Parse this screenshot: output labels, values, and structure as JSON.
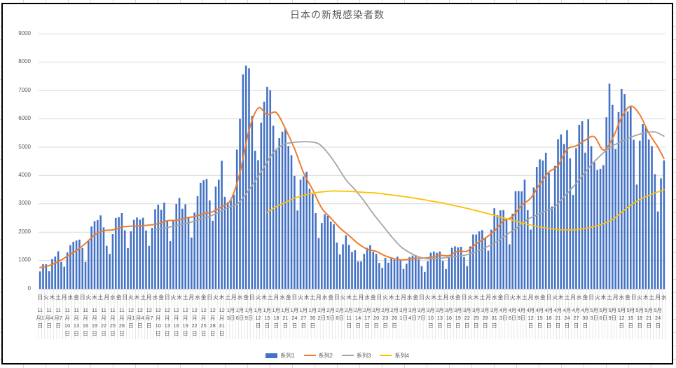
{
  "chart_data": {
    "type": "bar+line combo",
    "title": "日本の新規感染者数",
    "x_start_date": "11月1日",
    "x_end_date": "5月26日",
    "n_days": 207,
    "ylim": [
      0,
      9000
    ],
    "y_ticks": [
      0,
      1000,
      2000,
      3000,
      4000,
      5000,
      6000,
      7000,
      8000,
      9000
    ],
    "grid_color": "#D9D9D9",
    "axis_text_color": "#595959",
    "x_axis": {
      "weekday_cycle": "日火木土月水金",
      "weekday_step_days": 2,
      "date_step_days": 3,
      "date_labels": [
        "11月1日",
        "11月4日",
        "11月7日",
        "11月10日",
        "11月13日",
        "11月16日",
        "11月19日",
        "11月22日",
        "11月25日",
        "11月28日",
        "12月1日",
        "12月4日",
        "12月7日",
        "12月10日",
        "12月13日",
        "12月16日",
        "12月19日",
        "12月22日",
        "12月25日",
        "12月28日",
        "12月31日",
        "1月3日",
        "1月6日",
        "1月9日",
        "1月12日",
        "1月15日",
        "1月18日",
        "1月21日",
        "1月24日",
        "1月27日",
        "1月30日",
        "2月2日",
        "2月5日",
        "2月8日",
        "2月11日",
        "2月14日",
        "2月17日",
        "2月20日",
        "2月23日",
        "2月26日",
        "3月1日",
        "3月4日",
        "3月7日",
        "3月10日",
        "3月13日",
        "3月16日",
        "3月19日",
        "3月22日",
        "3月25日",
        "3月28日",
        "3月31日",
        "4月3日",
        "4月6日",
        "4月9日",
        "4月12日",
        "4月15日",
        "4月18日",
        "4月21日",
        "4月24日",
        "4月27日",
        "4月30日",
        "5月3日",
        "5月6日",
        "5月9日",
        "5月12日",
        "5月15日",
        "5月18日",
        "5月21日",
        "5月24日"
      ]
    },
    "series": [
      {
        "name": "系列1",
        "type": "bar",
        "color": "#4472C4",
        "start_day": 0,
        "step": 1,
        "values": [
          614,
          871,
          867,
          620,
          1050,
          1141,
          1324,
          947,
          781,
          1284,
          1543,
          1661,
          1704,
          1737,
          1440,
          950,
          1699,
          2201,
          2388,
          2427,
          2592,
          2168,
          1520,
          1230,
          1930,
          2501,
          2529,
          2674,
          2063,
          1440,
          2030,
          2434,
          2518,
          2442,
          2508,
          2058,
          1516,
          2152,
          2811,
          2971,
          2788,
          3041,
          2388,
          1680,
          2410,
          2994,
          3211,
          2829,
          2983,
          2501,
          1809,
          2690,
          3271,
          3742,
          3832,
          3881,
          3119,
          2403,
          3610,
          3852,
          4520,
          3246,
          3059,
          3127,
          3325,
          4915,
          6001,
          7569,
          7882,
          7790,
          6106,
          4876,
          4541,
          5870,
          6607,
          7133,
          7014,
          5759,
          4925,
          5320,
          5549,
          5653,
          5045,
          4717,
          3988,
          2764,
          3853,
          3971,
          4133,
          3534,
          3344,
          2673,
          1792,
          2324,
          2631,
          2576,
          2372,
          2279,
          1631,
          1216,
          1570,
          1887,
          1551,
          1304,
          1362,
          965,
          966,
          1236,
          1448,
          1538,
          1301,
          1234,
          912,
          741,
          1087,
          922,
          1076,
          1029,
          1136,
          999,
          698,
          888,
          1121,
          1173,
          1148,
          1034,
          800,
          599,
          974,
          1277,
          1316,
          1271,
          1320,
          988,
          695,
          1127,
          1449,
          1500,
          1463,
          1485,
          1119,
          800,
          1500,
          1918,
          1917,
          2027,
          2072,
          1785,
          1348,
          2087,
          2843,
          2597,
          2770,
          2779,
          2472,
          1571,
          2653,
          3448,
          3450,
          3442,
          3854,
          2777,
          2091,
          3579,
          4306,
          4570,
          4530,
          4805,
          4091,
          2908,
          4342,
          5283,
          5452,
          5113,
          5605,
          4605,
          3318,
          4963,
          5792,
          5918,
          4808,
          5986,
          5038,
          4470,
          4199,
          4236,
          4367,
          6058,
          7245,
          6493,
          4938,
          6243,
          7057,
          6879,
          6263,
          6421,
          5261,
          3680,
          5232,
          5816,
          5721,
          5272,
          5040,
          4048,
          2731,
          3901,
          4536
        ]
      },
      {
        "name": "系列2",
        "type": "line",
        "color": "#ED7D31",
        "start_day": 0,
        "step": 3,
        "values": [
          750,
          820,
          960,
          1150,
          1350,
          1600,
          1900,
          2050,
          2080,
          2180,
          2210,
          2220,
          2250,
          2300,
          2400,
          2420,
          2500,
          2550,
          2650,
          2720,
          2900,
          3150,
          4100,
          5600,
          6380,
          6150,
          6220,
          5650,
          4950,
          4100,
          3500,
          2850,
          2500,
          2150,
          1880,
          1600,
          1400,
          1320,
          1160,
          1060,
          1020,
          1070,
          1080,
          1110,
          1180,
          1170,
          1330,
          1330,
          1590,
          1790,
          2040,
          2390,
          2550,
          2950,
          3200,
          3700,
          4120,
          4350,
          4920,
          5050,
          5250,
          5370,
          4900,
          5300,
          6050,
          6450,
          6150,
          5500,
          5000
        ],
        "end_day": 206,
        "end_value": 4600
      },
      {
        "name": "系列3",
        "type": "line",
        "color": "#A5A5A5",
        "start_day": 38,
        "step": 3,
        "values": [
          2090,
          2140,
          2210,
          2280,
          2360,
          2460,
          2560,
          2700,
          2870,
          2980,
          3350,
          3800,
          4300,
          4800,
          5080,
          5160,
          5190,
          5190,
          5120,
          4800,
          4350,
          3850,
          3500,
          3100,
          2650,
          2250,
          1850,
          1500,
          1280,
          1130,
          1060,
          1070,
          1100,
          1140,
          1180,
          1270,
          1400,
          1560,
          1750,
          1980,
          2200,
          2450,
          2600,
          2750,
          2900,
          3250,
          3600,
          3980,
          4380,
          4700,
          4980,
          5150,
          5300,
          5430,
          5510,
          5540
        ],
        "end_day": 206,
        "end_value": 5390
      },
      {
        "name": "系列4",
        "type": "line",
        "color": "#FFC000",
        "start_day": 75,
        "step": 3,
        "values": [
          2700,
          2900,
          3050,
          3200,
          3300,
          3380,
          3420,
          3450,
          3450,
          3440,
          3420,
          3400,
          3380,
          3340,
          3300,
          3260,
          3210,
          3160,
          3100,
          3050,
          2980,
          2910,
          2840,
          2760,
          2680,
          2590,
          2500,
          2420,
          2330,
          2250,
          2180,
          2130,
          2090,
          2080,
          2090,
          2130,
          2200,
          2300,
          2440,
          2700,
          2950,
          3150,
          3300,
          3420
        ],
        "end_day": 206,
        "end_value": 3500
      }
    ]
  }
}
